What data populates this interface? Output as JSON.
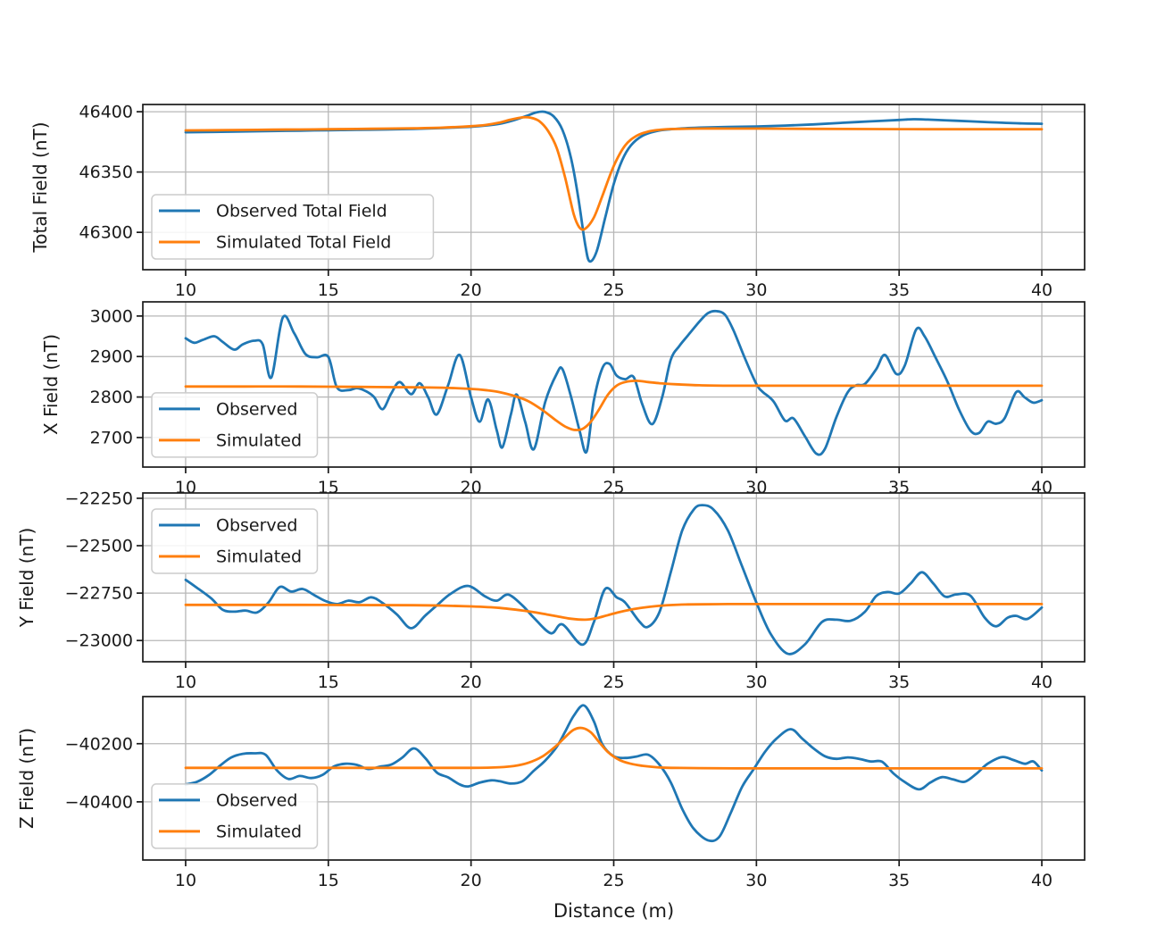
{
  "figure": {
    "xlabel": "Distance (m)",
    "colors": {
      "observed": "#1f77b4",
      "simulated": "#ff7f0e",
      "grid": "#b7b7b7",
      "spine": "#1a1a1a",
      "text": "#1a1a1a",
      "legend_border": "#cccccc",
      "background": "#ffffff"
    }
  },
  "chart_data": [
    {
      "type": "line",
      "id": "total-field",
      "ylabel": "Total Field (nT)",
      "xlim": [
        8.5,
        41.5
      ],
      "ylim": [
        46269,
        46406
      ],
      "xticks": [
        10,
        15,
        20,
        25,
        30,
        35,
        40
      ],
      "yticks": [
        46300,
        46350,
        46400
      ],
      "grid": true,
      "legend": {
        "position": "center-left",
        "y_frac": 0.546,
        "entries": [
          "Observed Total Field",
          "Simulated Total Field"
        ]
      },
      "series": [
        {
          "name": "Observed Total Field",
          "color": "observed",
          "x": [
            10,
            11,
            12,
            13,
            14,
            15,
            16,
            17,
            18,
            19,
            20,
            20.5,
            21,
            21.5,
            22,
            22.3,
            22.6,
            22.9,
            23.2,
            23.5,
            23.75,
            24,
            24.15,
            24.4,
            24.7,
            25,
            25.3,
            25.6,
            26,
            26.5,
            27,
            27.5,
            28,
            29,
            30,
            31,
            32,
            33,
            34,
            35,
            35.5,
            36,
            37,
            38,
            39,
            40
          ],
          "y": [
            46383,
            46383.3,
            46383.6,
            46384,
            46384.3,
            46384.7,
            46385,
            46385.3,
            46385.8,
            46386.5,
            46387.5,
            46388.5,
            46390,
            46393,
            46397,
            46399.5,
            46399.8,
            46396,
            46385,
            46362,
            46330,
            46290,
            46276,
            46284,
            46312,
            46340,
            46360,
            46372,
            46380,
            46384,
            46385.5,
            46386.3,
            46386.8,
            46387.4,
            46387.8,
            46388.5,
            46389.5,
            46390.8,
            46392,
            46393.2,
            46393.8,
            46393.5,
            46392.5,
            46391.5,
            46390.5,
            46390
          ]
        },
        {
          "name": "Simulated Total Field",
          "color": "simulated",
          "x": [
            10,
            11,
            12,
            13,
            14,
            15,
            16,
            17,
            18,
            19,
            20,
            20.5,
            21,
            21.4,
            21.8,
            22.1,
            22.4,
            22.7,
            23,
            23.3,
            23.6,
            23.8,
            24,
            24.3,
            24.6,
            25,
            25.4,
            25.8,
            26.2,
            26.6,
            27,
            28,
            29,
            30,
            32,
            34,
            36,
            38,
            40
          ],
          "y": [
            46384.5,
            46384.7,
            46384.9,
            46385.1,
            46385.3,
            46385.5,
            46385.7,
            46386,
            46386.3,
            46386.8,
            46388,
            46389,
            46391,
            46393.5,
            46395.3,
            46395,
            46392,
            46384,
            46370,
            46345,
            46315,
            46304,
            46303,
            46312,
            46330,
            46355,
            46372,
            46380,
            46383.5,
            46385,
            46385.6,
            46386,
            46386,
            46386,
            46385.8,
            46385.6,
            46385.5,
            46385.5,
            46385.5
          ]
        }
      ]
    },
    {
      "type": "line",
      "id": "x-field",
      "ylabel": "X Field (nT)",
      "xlim": [
        8.5,
        41.5
      ],
      "ylim": [
        2627,
        3035
      ],
      "xticks": [
        10,
        15,
        20,
        25,
        30,
        35,
        40
      ],
      "yticks": [
        2700,
        2800,
        2900,
        3000
      ],
      "grid": true,
      "legend": {
        "position": "center-left",
        "y_frac": 0.551,
        "entries": [
          "Observed",
          "Simulated"
        ]
      },
      "series": [
        {
          "name": "Observed",
          "color": "observed",
          "x": [
            10,
            10.3,
            10.6,
            11,
            11.3,
            11.7,
            12,
            12.4,
            12.7,
            13,
            13.4,
            13.8,
            14.2,
            14.6,
            15,
            15.3,
            15.7,
            16,
            16.3,
            16.6,
            16.9,
            17.2,
            17.5,
            17.9,
            18.2,
            18.5,
            18.8,
            19.2,
            19.6,
            20,
            20.3,
            20.6,
            20.9,
            21.1,
            21.4,
            21.6,
            21.9,
            22.2,
            22.6,
            23,
            23.2,
            23.5,
            23.8,
            24.05,
            24.3,
            24.6,
            24.85,
            25.1,
            25.4,
            25.7,
            26,
            26.35,
            26.7,
            27,
            27.3,
            27.6,
            28,
            28.3,
            28.6,
            28.9,
            29.2,
            29.6,
            30,
            30.2,
            30.6,
            31,
            31.3,
            31.7,
            32.1,
            32.4,
            32.8,
            33.2,
            33.5,
            33.8,
            34.2,
            34.5,
            34.9,
            35.2,
            35.6,
            35.9,
            36.3,
            36.7,
            37.1,
            37.5,
            37.8,
            38.1,
            38.4,
            38.7,
            39.1,
            39.4,
            39.7,
            40
          ],
          "y": [
            2945,
            2934,
            2941,
            2950,
            2936,
            2917,
            2930,
            2939,
            2930,
            2848,
            2996,
            2958,
            2906,
            2898,
            2899,
            2824,
            2817,
            2822,
            2815,
            2800,
            2770,
            2808,
            2837,
            2807,
            2834,
            2799,
            2757,
            2830,
            2904,
            2799,
            2739,
            2794,
            2718,
            2676,
            2758,
            2806,
            2738,
            2671,
            2788,
            2857,
            2869,
            2802,
            2718,
            2665,
            2790,
            2871,
            2882,
            2853,
            2844,
            2849,
            2782,
            2733,
            2800,
            2892,
            2926,
            2952,
            2986,
            3007,
            3012,
            3003,
            2964,
            2895,
            2832,
            2814,
            2789,
            2742,
            2747,
            2703,
            2660,
            2672,
            2750,
            2812,
            2829,
            2832,
            2869,
            2904,
            2857,
            2878,
            2967,
            2949,
            2894,
            2837,
            2769,
            2717,
            2711,
            2739,
            2734,
            2748,
            2812,
            2799,
            2786,
            2792
          ]
        },
        {
          "name": "Simulated",
          "color": "simulated",
          "x": [
            10,
            12,
            14,
            16,
            18,
            19,
            20,
            20.5,
            21,
            21.5,
            22,
            22.5,
            23,
            23.3,
            23.6,
            23.9,
            24.2,
            24.5,
            24.8,
            25.1,
            25.4,
            25.8,
            26.2,
            26.6,
            27,
            28,
            29,
            30,
            32,
            34,
            36,
            38,
            40
          ],
          "y": [
            2826,
            2826,
            2826,
            2825,
            2824,
            2823,
            2820,
            2817,
            2812,
            2803,
            2790,
            2768,
            2741,
            2727,
            2719,
            2721,
            2739,
            2771,
            2806,
            2828,
            2837,
            2840,
            2837,
            2834,
            2832,
            2829,
            2828,
            2828,
            2828,
            2828,
            2828,
            2828,
            2828
          ]
        }
      ]
    },
    {
      "type": "line",
      "id": "y-field",
      "ylabel": "Y Field (nT)",
      "xlim": [
        8.5,
        41.5
      ],
      "ylim": [
        -23112,
        -22222
      ],
      "xticks": [
        10,
        15,
        20,
        25,
        30,
        35,
        40
      ],
      "yticks": [
        -23000,
        -22750,
        -22500,
        -22250
      ],
      "grid": true,
      "legend": {
        "position": "upper-left",
        "y_frac": 0.095,
        "entries": [
          "Observed",
          "Simulated"
        ]
      },
      "series": [
        {
          "name": "Observed",
          "color": "observed",
          "x": [
            10,
            10.4,
            10.9,
            11.3,
            11.7,
            12.1,
            12.5,
            12.9,
            13.3,
            13.7,
            14.1,
            14.5,
            14.9,
            15.3,
            15.7,
            16.1,
            16.5,
            16.9,
            17.4,
            17.9,
            18.4,
            18.8,
            19.3,
            19.9,
            20.5,
            20.9,
            21.3,
            21.8,
            22.2,
            22.8,
            23.2,
            23.9,
            24.3,
            24.7,
            25.1,
            25.4,
            25.9,
            26.2,
            26.6,
            27,
            27.4,
            27.8,
            28.1,
            28.5,
            29,
            29.5,
            30,
            30.5,
            31.1,
            31.7,
            32.3,
            32.8,
            33.3,
            33.8,
            34.2,
            34.6,
            35,
            35.4,
            35.8,
            36.2,
            36.6,
            37,
            37.5,
            38,
            38.4,
            38.8,
            39.1,
            39.5,
            40
          ],
          "y": [
            -22680,
            -22722,
            -22778,
            -22838,
            -22848,
            -22842,
            -22852,
            -22800,
            -22718,
            -22742,
            -22728,
            -22760,
            -22792,
            -22808,
            -22790,
            -22798,
            -22772,
            -22802,
            -22862,
            -22935,
            -22868,
            -22815,
            -22752,
            -22712,
            -22768,
            -22790,
            -22758,
            -22815,
            -22880,
            -22962,
            -22915,
            -23022,
            -22905,
            -22728,
            -22772,
            -22800,
            -22900,
            -22928,
            -22850,
            -22640,
            -22420,
            -22310,
            -22286,
            -22310,
            -22420,
            -22610,
            -22800,
            -22965,
            -23070,
            -23020,
            -22902,
            -22890,
            -22896,
            -22849,
            -22765,
            -22744,
            -22752,
            -22700,
            -22640,
            -22700,
            -22768,
            -22757,
            -22764,
            -22880,
            -22925,
            -22880,
            -22870,
            -22886,
            -22826
          ]
        },
        {
          "name": "Simulated",
          "color": "simulated",
          "x": [
            10,
            12,
            14,
            16,
            18,
            19,
            20,
            21,
            22,
            22.5,
            23,
            23.5,
            24,
            24.4,
            24.8,
            25.2,
            25.6,
            26,
            26.5,
            27,
            27.5,
            28,
            29,
            30,
            32,
            34,
            36,
            38,
            40
          ],
          "y": [
            -22812,
            -22812,
            -22812,
            -22813,
            -22814,
            -22816,
            -22820,
            -22828,
            -22846,
            -22858,
            -22872,
            -22885,
            -22890,
            -22882,
            -22866,
            -22850,
            -22837,
            -22827,
            -22818,
            -22813,
            -22810,
            -22809,
            -22808,
            -22808,
            -22808,
            -22808,
            -22808,
            -22808,
            -22808
          ]
        }
      ]
    },
    {
      "type": "line",
      "id": "z-field",
      "ylabel": "Z Field (nT)",
      "xlim": [
        8.5,
        41.5
      ],
      "ylim": [
        -40600,
        -40038
      ],
      "xticks": [
        10,
        15,
        20,
        25,
        30,
        35,
        40
      ],
      "yticks": [
        -40400,
        -40200
      ],
      "grid": true,
      "legend": {
        "position": "center-left",
        "y_frac": 0.535,
        "entries": [
          "Observed",
          "Simulated"
        ]
      },
      "series": [
        {
          "name": "Observed",
          "color": "observed",
          "x": [
            10,
            10.4,
            10.8,
            11.2,
            11.6,
            12,
            12.4,
            12.8,
            13.2,
            13.6,
            14,
            14.4,
            14.8,
            15.2,
            15.6,
            16,
            16.4,
            16.8,
            17.2,
            17.6,
            18,
            18.4,
            18.8,
            19.2,
            19.6,
            19.9,
            20.3,
            20.7,
            21,
            21.4,
            21.8,
            22.2,
            22.6,
            23,
            23.3,
            23.6,
            23.95,
            24.3,
            24.6,
            25,
            25.4,
            25.8,
            26.2,
            26.6,
            27,
            27.4,
            27.8,
            28.3,
            28.7,
            29.1,
            29.5,
            29.9,
            30.3,
            30.7,
            31.2,
            31.6,
            32,
            32.4,
            32.8,
            33.2,
            33.6,
            34,
            34.4,
            34.8,
            35.2,
            35.7,
            36.1,
            36.5,
            36.9,
            37.3,
            37.7,
            38.1,
            38.6,
            39,
            39.4,
            39.7,
            40
          ],
          "y": [
            -40340,
            -40331,
            -40309,
            -40276,
            -40247,
            -40235,
            -40233,
            -40238,
            -40292,
            -40321,
            -40311,
            -40318,
            -40307,
            -40278,
            -40269,
            -40273,
            -40287,
            -40279,
            -40272,
            -40247,
            -40216,
            -40250,
            -40299,
            -40316,
            -40340,
            -40347,
            -40334,
            -40326,
            -40329,
            -40337,
            -40329,
            -40293,
            -40258,
            -40211,
            -40158,
            -40104,
            -40068,
            -40122,
            -40202,
            -40243,
            -40249,
            -40244,
            -40238,
            -40272,
            -40333,
            -40424,
            -40492,
            -40532,
            -40520,
            -40438,
            -40348,
            -40288,
            -40228,
            -40183,
            -40150,
            -40182,
            -40216,
            -40243,
            -40252,
            -40247,
            -40252,
            -40261,
            -40262,
            -40302,
            -40332,
            -40357,
            -40333,
            -40315,
            -40323,
            -40331,
            -40304,
            -40269,
            -40246,
            -40256,
            -40269,
            -40261,
            -40292
          ]
        },
        {
          "name": "Simulated",
          "color": "simulated",
          "x": [
            10,
            12,
            14,
            16,
            18,
            20,
            21,
            21.5,
            22,
            22.5,
            23,
            23.3,
            23.6,
            23.9,
            24.2,
            24.5,
            24.8,
            25.2,
            25.6,
            26,
            26.5,
            27,
            28,
            30,
            32,
            34,
            36,
            38,
            40
          ],
          "y": [
            -40283,
            -40283,
            -40283,
            -40283,
            -40283,
            -40283,
            -40281,
            -40277,
            -40266,
            -40244,
            -40206,
            -40177,
            -40152,
            -40146,
            -40161,
            -40196,
            -40229,
            -40256,
            -40269,
            -40276,
            -40281,
            -40283,
            -40284,
            -40285,
            -40285,
            -40285,
            -40285,
            -40285,
            -40285
          ]
        }
      ]
    }
  ]
}
